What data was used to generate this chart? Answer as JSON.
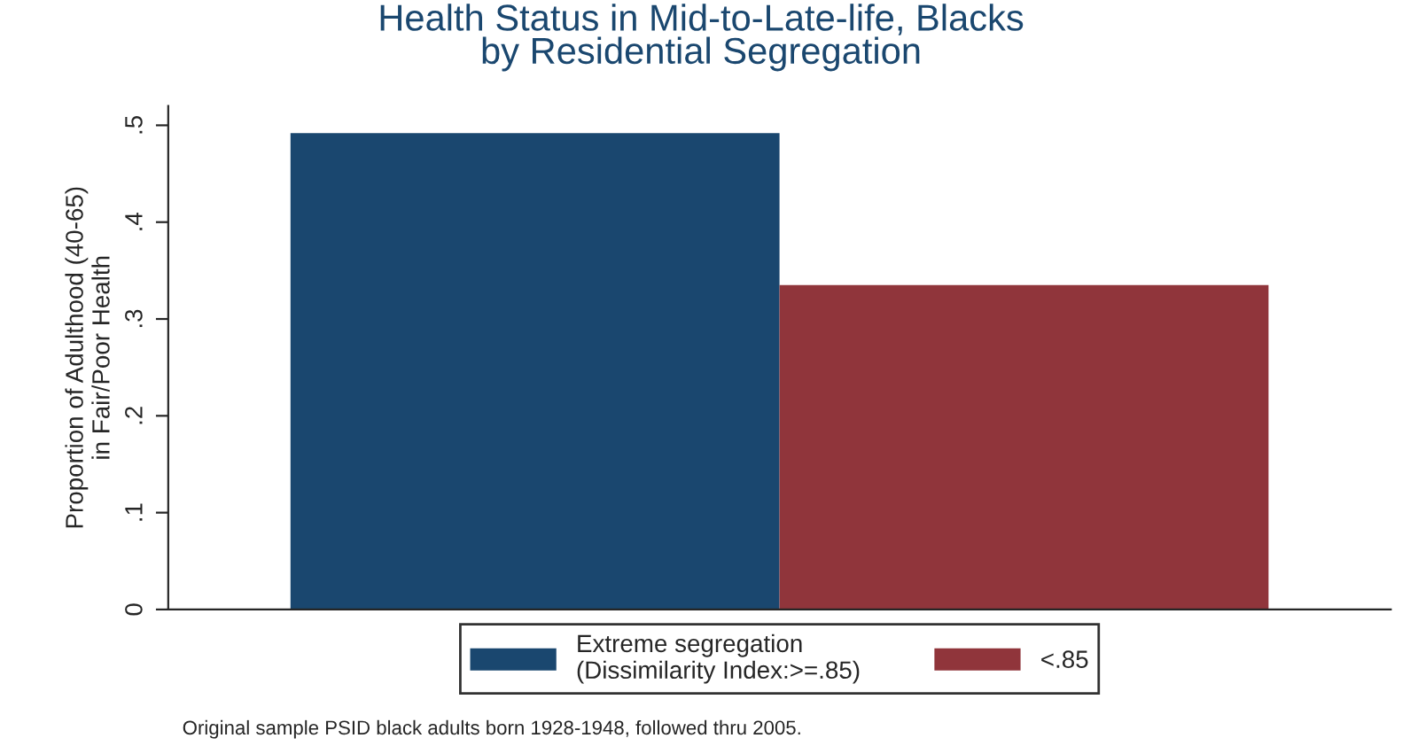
{
  "chart_data": {
    "type": "bar",
    "title": "Health Status in Mid-to-Late-life, Blacks\nby Residential Segregation",
    "ylabel": "Proportion of Adulthood (40-65)\nin Fair/Poor Health",
    "categories": [
      null
    ],
    "series": [
      {
        "name": "Extreme segregation\n(Dissimilarity Index:>=.85)",
        "color": "#1a476f",
        "values": [
          0.492
        ]
      },
      {
        "name": "<.85",
        "color": "#90353b",
        "values": [
          0.335
        ]
      }
    ],
    "ylim": [
      0,
      0.52
    ],
    "yticks": [
      0,
      {
        "value": 0.1,
        "label": ".1"
      },
      {
        "value": 0.2,
        "label": ".2"
      },
      {
        "value": 0.3,
        "label": ".3"
      },
      {
        "value": 0.4,
        "label": ".4"
      },
      {
        "value": 0.5,
        "label": ".5"
      }
    ],
    "grid": false,
    "legend": "bottom",
    "annotations": [
      "Original sample PSID black adults born 1928-1948, followed thru 2005."
    ]
  }
}
